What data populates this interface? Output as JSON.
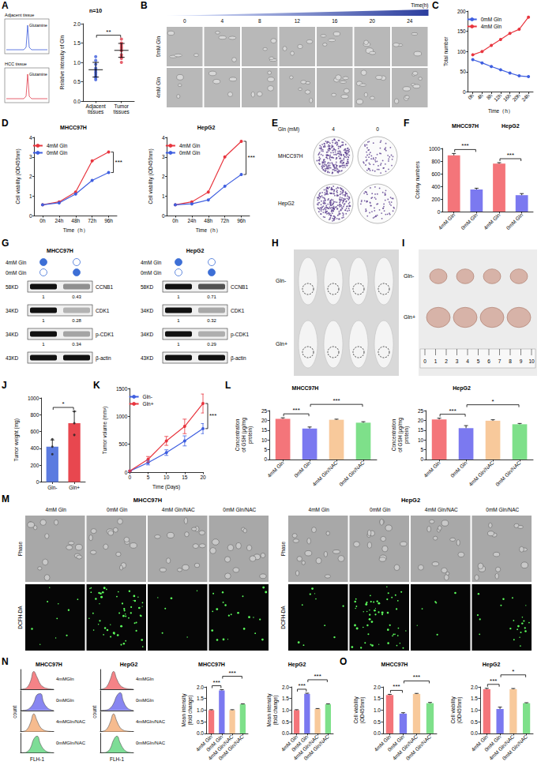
{
  "chart_data": [
    {
      "panel": "A",
      "type": "scatter",
      "title": "n=10",
      "categories": [
        "Adjacent tissues",
        "Tumor tissues"
      ],
      "values": [
        [
          0.55,
          0.6,
          0.65,
          0.7,
          0.75,
          0.8,
          0.85,
          0.95,
          1.05,
          1.15
        ],
        [
          1.0,
          1.1,
          1.15,
          1.2,
          1.3,
          1.35,
          1.4,
          1.45,
          1.5,
          1.6
        ]
      ],
      "means": [
        0.81,
        1.31
      ],
      "errors": [
        0.19,
        0.18
      ],
      "colors": [
        "#3b5bdb",
        "#e03b4a"
      ],
      "marker": "circle",
      "ylabel": "Relative intensity of Gln",
      "ylim": [
        0,
        2
      ],
      "yticks": [
        {
          "value": 0,
          "label": "0.0"
        },
        {
          "value": 0.5,
          "label": "0.5"
        },
        {
          "value": 1,
          "label": "1.0"
        },
        {
          "value": 1.5,
          "label": "1.5"
        },
        {
          "value": 2,
          "label": "2.0"
        }
      ],
      "annotations": [
        {
          "text": "**",
          "between": [
            0,
            1
          ]
        }
      ]
    },
    {
      "panel": "C",
      "type": "line",
      "categories": [
        "0h",
        "4h",
        "8h",
        "12h",
        "16h",
        "20h",
        "24h"
      ],
      "xlabel": "Time（h）",
      "ylabel": "Total number",
      "series": [
        {
          "name": "0mM Gln",
          "color": "#3f5fe0",
          "values": [
            80,
            72,
            63,
            55,
            47,
            40,
            38
          ]
        },
        {
          "name": "4mM Gln",
          "color": "#e8363f",
          "values": [
            92,
            100,
            115,
            130,
            145,
            155,
            185
          ]
        }
      ],
      "ylim": [
        0,
        200
      ],
      "yticks": [
        0,
        50,
        100,
        150,
        200
      ],
      "legend": "top-left",
      "marker": "circle"
    },
    {
      "panel": "D",
      "type": "line",
      "title": "MHCC97H",
      "categories": [
        "0h",
        "24h",
        "48h",
        "72h",
        "96h"
      ],
      "xlabel": "Time（h）",
      "ylabel": "Cell viability (OD450nm)",
      "series": [
        {
          "name": "4mM Gln",
          "color": "#e8363f",
          "values": [
            0.55,
            0.7,
            1.2,
            2.8,
            3.25
          ]
        },
        {
          "name": "0mM Gln",
          "color": "#3f5fe0",
          "values": [
            0.55,
            0.65,
            1.1,
            1.8,
            2.2
          ]
        }
      ],
      "ylim": [
        0,
        4
      ],
      "yticks": [
        0,
        1,
        2,
        3,
        4
      ],
      "legend": "top-left",
      "marker": "circle",
      "annotations": [
        {
          "text": "***"
        }
      ]
    },
    {
      "panel": "D",
      "type": "line",
      "title": "HepG2",
      "categories": [
        "0h",
        "24h",
        "48h",
        "72h",
        "96h"
      ],
      "xlabel": "Time（h）",
      "ylabel": "Cell viability (OD450nm)",
      "series": [
        {
          "name": "4mM Gln",
          "color": "#e8363f",
          "values": [
            0.55,
            0.7,
            1.2,
            3.0,
            3.8
          ]
        },
        {
          "name": "0mM Gln",
          "color": "#3f5fe0",
          "values": [
            0.55,
            0.6,
            0.8,
            1.5,
            2.1
          ]
        }
      ],
      "ylim": [
        0,
        4
      ],
      "yticks": [
        0,
        1,
        2,
        3,
        4
      ],
      "legend": "top-left",
      "marker": "circle",
      "annotations": [
        {
          "text": "***"
        }
      ]
    },
    {
      "panel": "F",
      "type": "bar",
      "categories": [
        "4mM Gln",
        "0mM Gln",
        "4mM Gln",
        "0mM Gln"
      ],
      "groups": [
        {
          "label": "MHCC97H",
          "categories": [
            0,
            1
          ]
        },
        {
          "label": "HepG2",
          "categories": [
            2,
            3
          ]
        }
      ],
      "values": [
        890,
        350,
        760,
        260
      ],
      "errors": [
        30,
        20,
        15,
        25
      ],
      "colors": [
        "#f4757a",
        "#7b79f0",
        "#f4757a",
        "#7b79f0"
      ],
      "ylabel": "Colony numbers",
      "ylim": [
        0,
        1000
      ],
      "yticks": [
        0,
        200,
        400,
        600,
        800,
        1000
      ],
      "annotations": [
        {
          "text": "***",
          "between": [
            0,
            1
          ]
        },
        {
          "text": "***",
          "between": [
            2,
            3
          ]
        }
      ]
    },
    {
      "panel": "J",
      "type": "bar",
      "categories": [
        "Gln-",
        "Gln+"
      ],
      "values": [
        420,
        700
      ],
      "errors": [
        80,
        140
      ],
      "points": [
        [
          330,
          420,
          510
        ],
        [
          560,
          700,
          840
        ]
      ],
      "colors": [
        "#5b7be0",
        "#e8474f"
      ],
      "ylabel": "Tumor weight (mg)",
      "ylim": [
        0,
        1000
      ],
      "yticks": [
        0,
        200,
        400,
        600,
        800,
        1000
      ],
      "annotations": [
        {
          "text": "*",
          "between": [
            0,
            1
          ]
        }
      ]
    },
    {
      "panel": "K",
      "type": "line",
      "x": [
        0,
        5,
        10,
        15,
        20
      ],
      "xlabel": "Time (Days)",
      "ylabel": "Tumor volume (mm³)",
      "series": [
        {
          "name": "Gln-",
          "color": "#3f5fe0",
          "values": [
            20,
            170,
            350,
            560,
            780
          ],
          "errors": [
            5,
            40,
            50,
            90,
            90
          ]
        },
        {
          "name": "Gln+",
          "color": "#e8363f",
          "values": [
            20,
            230,
            560,
            820,
            1230
          ],
          "errors": [
            5,
            50,
            80,
            130,
            170
          ]
        }
      ],
      "xlim": [
        0,
        20
      ],
      "xticks": [
        0,
        5,
        10,
        15,
        20
      ],
      "ylim": [
        0,
        1500
      ],
      "yticks": [
        0,
        500,
        1000,
        1500
      ],
      "legend": "top-left",
      "marker": "circle",
      "annotations": [
        {
          "text": "***"
        }
      ]
    },
    {
      "panel": "L",
      "type": "bar",
      "title": "MHCC97H",
      "categories": [
        "4mM Gln",
        "0mM Gln",
        "4mM Gln/NAC",
        "0mM Gln/NAC"
      ],
      "values": [
        20.8,
        15.8,
        20.3,
        18.8
      ],
      "errors": [
        0.5,
        0.8,
        0.3,
        0.5
      ],
      "colors": [
        "#f4757a",
        "#7b79f0",
        "#f8c99b",
        "#7ee08a"
      ],
      "ylabel": "Concentration of GSH (μg/mg protein)",
      "ylim": [
        0,
        25
      ],
      "yticks": [
        0,
        5,
        10,
        15,
        20,
        25
      ],
      "annotations": [
        {
          "text": "***",
          "between": [
            0,
            1
          ]
        },
        {
          "text": "***",
          "between": [
            1,
            3
          ]
        }
      ]
    },
    {
      "panel": "L",
      "type": "bar",
      "title": "HepG2",
      "categories": [
        "4mM Gln",
        "0mM Gln",
        "4mM Gln/NAC",
        "0mM Gln/NAC"
      ],
      "values": [
        20.5,
        16.0,
        19.8,
        18.0
      ],
      "errors": [
        0.6,
        1.3,
        0.5,
        0.4
      ],
      "colors": [
        "#f4757a",
        "#7b79f0",
        "#f8c99b",
        "#7ee08a"
      ],
      "ylabel": "Concentration of GSH (μg/mg protein)",
      "ylim": [
        0,
        25
      ],
      "yticks": [
        0,
        5,
        10,
        15,
        20,
        25
      ],
      "annotations": [
        {
          "text": "***",
          "between": [
            0,
            1
          ]
        },
        {
          "text": "*",
          "between": [
            1,
            3
          ]
        }
      ]
    },
    {
      "panel": "N",
      "type": "area",
      "title": "MHCC97H",
      "xlabel": "FLH-1",
      "ylabel": "count",
      "x": [
        0,
        1,
        2,
        3,
        4,
        5,
        6,
        7,
        8,
        9,
        10
      ],
      "series": [
        {
          "name": "4mMGln",
          "color": "#f4757a",
          "values": [
            0,
            0.2,
            1,
            4,
            9,
            6,
            2.5,
            1,
            0.4,
            0.1,
            0
          ]
        },
        {
          "name": "0mMGln",
          "color": "#7b79f0",
          "values": [
            0,
            0.1,
            0.4,
            1.5,
            4,
            8,
            8.5,
            4,
            1.5,
            0.4,
            0
          ]
        },
        {
          "name": "4mMGln/NAC",
          "color": "#f5b482",
          "values": [
            0,
            0.2,
            1.2,
            4.5,
            9,
            5.5,
            2.2,
            0.8,
            0.3,
            0.1,
            0
          ]
        },
        {
          "name": "0mMGln/NAC",
          "color": "#6fd98b",
          "values": [
            0,
            0.1,
            0.6,
            2.5,
            7,
            8.5,
            4.5,
            1.8,
            0.6,
            0.2,
            0
          ]
        }
      ],
      "xlim": [
        0,
        10
      ],
      "ylim": [
        0,
        10
      ],
      "tick_labels": false
    },
    {
      "panel": "N",
      "type": "area",
      "title": "HepG2",
      "xlabel": "FLH-1",
      "ylabel": "count",
      "x": [
        0,
        1,
        2,
        3,
        4,
        5,
        6,
        7,
        8,
        9,
        10
      ],
      "series": [
        {
          "name": "4mMGln",
          "color": "#f4757a",
          "values": [
            0,
            0.3,
            1.5,
            5,
            9,
            5,
            2,
            0.8,
            0.3,
            0.1,
            0
          ]
        },
        {
          "name": "0mMGln",
          "color": "#7b79f0",
          "values": [
            0,
            0.1,
            0.3,
            1.2,
            3.5,
            7.5,
            9,
            4.5,
            1.5,
            0.4,
            0
          ]
        },
        {
          "name": "4mMGln/NAC",
          "color": "#f5b482",
          "values": [
            0,
            0.3,
            1.4,
            4.8,
            9,
            5.2,
            2,
            0.7,
            0.3,
            0.1,
            0
          ]
        },
        {
          "name": "0mMGln/NAC",
          "color": "#6fd98b",
          "values": [
            0,
            0.1,
            0.5,
            2.2,
            6.5,
            8.5,
            5,
            2,
            0.6,
            0.2,
            0
          ]
        }
      ],
      "xlim": [
        0,
        10
      ],
      "ylim": [
        0,
        10
      ],
      "tick_labels": false
    },
    {
      "panel": "N",
      "type": "bar",
      "title": "MHCC97H",
      "categories": [
        "4mM Gln",
        "0mM Gln",
        "4mM Gln/NAC",
        "0mM Gln/NAC"
      ],
      "values": [
        1.0,
        1.85,
        1.0,
        1.25
      ],
      "errors": [
        0.02,
        0.03,
        0.02,
        0.02
      ],
      "colors": [
        "#f4757a",
        "#7b79f0",
        "#f8c99b",
        "#7ee08a"
      ],
      "ylabel": "Mean intensity (fold change)",
      "ylim": [
        0,
        2
      ],
      "yticks": [
        {
          "value": 0,
          "label": "0.0"
        },
        {
          "value": 0.5,
          "label": "0.5"
        },
        {
          "value": 1,
          "label": "1.0"
        },
        {
          "value": 1.5,
          "label": "1.5"
        },
        {
          "value": 2,
          "label": "2.0"
        }
      ],
      "annotations": [
        {
          "text": "***",
          "between": [
            0,
            1
          ]
        },
        {
          "text": "***",
          "between": [
            1,
            3
          ]
        }
      ]
    },
    {
      "panel": "N",
      "type": "bar",
      "title": "HepG2",
      "categories": [
        "4mM Gln",
        "0mM Gln",
        "4mM Gln/NAC",
        "0mM Gln/NAC"
      ],
      "values": [
        1.0,
        1.7,
        1.05,
        1.25
      ],
      "errors": [
        0.02,
        0.03,
        0.02,
        0.02
      ],
      "colors": [
        "#f4757a",
        "#7b79f0",
        "#f8c99b",
        "#7ee08a"
      ],
      "ylabel": "Mean intensity (fold change)",
      "ylim": [
        0,
        2
      ],
      "yticks": [
        {
          "value": 0,
          "label": "0.0"
        },
        {
          "value": 0.5,
          "label": "0.5"
        },
        {
          "value": 1,
          "label": "1.0"
        },
        {
          "value": 1.5,
          "label": "1.5"
        },
        {
          "value": 2,
          "label": "2.0"
        }
      ],
      "annotations": [
        {
          "text": "***",
          "between": [
            0,
            1
          ]
        },
        {
          "text": "***",
          "between": [
            1,
            3
          ]
        }
      ]
    },
    {
      "panel": "O",
      "type": "bar",
      "title": "MHCC97H",
      "categories": [
        "4mM Gln",
        "0mM Gln",
        "4mM Gln/NAC",
        "0mM Gln/NAC"
      ],
      "values": [
        1.65,
        0.85,
        1.7,
        1.3
      ],
      "errors": [
        0.03,
        0.04,
        0.02,
        0.03
      ],
      "colors": [
        "#f4757a",
        "#7b79f0",
        "#f8c99b",
        "#7ee08a"
      ],
      "ylabel": "Cell viability (OD450nm)",
      "ylim": [
        0,
        2
      ],
      "yticks": [
        {
          "value": 0,
          "label": "0.0"
        },
        {
          "value": 0.5,
          "label": "0.5"
        },
        {
          "value": 1,
          "label": "1.0"
        },
        {
          "value": 1.5,
          "label": "1.5"
        },
        {
          "value": 2,
          "label": "2.0"
        }
      ],
      "annotations": [
        {
          "text": "***",
          "between": [
            0,
            1
          ]
        },
        {
          "text": "***",
          "between": [
            1,
            3
          ]
        }
      ]
    },
    {
      "panel": "O",
      "type": "bar",
      "title": "HepG2",
      "categories": [
        "4mM Gln",
        "0mM Gln",
        "4mM Gln/NAC",
        "0mM Gln/NAC"
      ],
      "values": [
        1.9,
        1.05,
        1.9,
        1.3
      ],
      "errors": [
        0.04,
        0.08,
        0.03,
        0.02
      ],
      "colors": [
        "#f4757a",
        "#7b79f0",
        "#f8c99b",
        "#7ee08a"
      ],
      "ylabel": "Cell viability (OD450nm)",
      "ylim": [
        0,
        2
      ],
      "yticks": [
        {
          "value": 0,
          "label": "0.0"
        },
        {
          "value": 0.5,
          "label": "0.5"
        },
        {
          "value": 1,
          "label": "1.0"
        },
        {
          "value": 1.5,
          "label": "1.5"
        },
        {
          "value": 2,
          "label": "2.0"
        }
      ],
      "annotations": [
        {
          "text": "***",
          "between": [
            0,
            1
          ]
        },
        {
          "text": "*",
          "between": [
            1,
            3
          ]
        }
      ]
    }
  ],
  "figure": {
    "A": {
      "traces": [
        {
          "label": "Adjacent tissue",
          "peak": "Glutamine"
        },
        {
          "label": "HCC tissue",
          "peak": "Glutamine"
        }
      ]
    },
    "B": {
      "axis_label": "Time(h)",
      "times": [
        "0",
        "4",
        "8",
        "12",
        "16",
        "20",
        "24"
      ],
      "rows": [
        "0mM Gln",
        "4mM Gln"
      ]
    },
    "E": {
      "header": "Gln (mM)",
      "columns": [
        "4",
        "0"
      ],
      "rows": [
        "MHCC97H",
        "HepG2"
      ]
    },
    "G": {
      "blots": [
        {
          "title": "MHCC97H",
          "conditions": [
            "4mM Gln",
            "0mM Gln"
          ],
          "bands": [
            {
              "size": "58KD",
              "name": "CCNB1",
              "quant": [
                1,
                0.43
              ]
            },
            {
              "size": "34KD",
              "name": "CDK1",
              "quant": [
                1,
                0.28
              ]
            },
            {
              "size": "34KD",
              "name": "p-CDK1",
              "quant": [
                1,
                0.34
              ]
            },
            {
              "size": "43KD",
              "name": "β-actin"
            }
          ]
        },
        {
          "title": "HepG2",
          "conditions": [
            "4mM Gln",
            "0mM Gln"
          ],
          "bands": [
            {
              "size": "58KD",
              "name": "CCNB1",
              "quant": [
                1,
                0.71
              ]
            },
            {
              "size": "34KD",
              "name": "CDK1",
              "quant": [
                1,
                0.32
              ]
            },
            {
              "size": "34KD",
              "name": "p-CDK1",
              "quant": [
                1,
                0.29
              ]
            },
            {
              "size": "43KD",
              "name": "β-actin"
            }
          ]
        }
      ]
    },
    "H": {
      "rows": [
        "Gln-",
        "Gln+"
      ]
    },
    "I": {
      "rows": [
        "Gln-",
        "Gln+"
      ],
      "ruler": [
        "0",
        "1",
        "2",
        "3",
        "4",
        "5",
        "6",
        "7",
        "8",
        "9",
        "10"
      ]
    },
    "M": {
      "groups": [
        "MHCC97H",
        "HepG2"
      ],
      "columns": [
        "4mM Gln",
        "0mM Gln",
        "4mM Gln/NAC",
        "0mM Gln/NAC"
      ],
      "rows": [
        "Phase",
        "DCFH-DA"
      ]
    }
  }
}
